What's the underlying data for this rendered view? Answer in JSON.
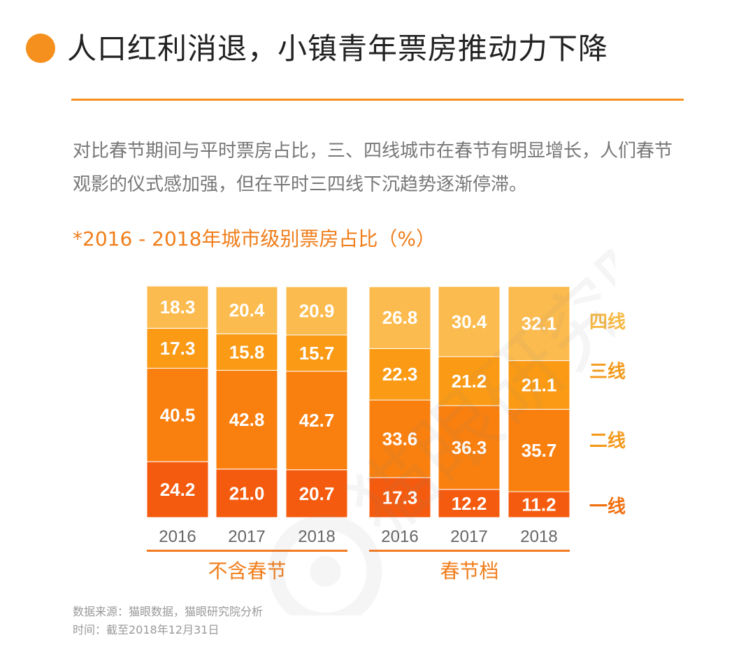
{
  "header": {
    "title": "人口红利消退，小镇青年票房推动力下降"
  },
  "description": "对比春节期间与平时票房占比，三、四线城市在春节有明显增长，人们春节观影的仪式感加强，但在平时三四线下沉趋势逐渐停滞。",
  "chart_data": {
    "type": "bar",
    "stacked": true,
    "percent_stacked": true,
    "title": "*2016 - 2018年城市级别票房占比（%）",
    "groups": [
      {
        "label": "不含春节",
        "categories": [
          "2016",
          "2017",
          "2018"
        ],
        "series": [
          {
            "name": "一线",
            "values": [
              24.2,
              21.0,
              20.7
            ]
          },
          {
            "name": "二线",
            "values": [
              40.5,
              42.8,
              42.7
            ]
          },
          {
            "name": "三线",
            "values": [
              17.3,
              15.8,
              15.7
            ]
          },
          {
            "name": "四线",
            "values": [
              18.3,
              20.4,
              20.9
            ]
          }
        ]
      },
      {
        "label": "春节档",
        "categories": [
          "2016",
          "2017",
          "2018"
        ],
        "series": [
          {
            "name": "一线",
            "values": [
              17.3,
              12.2,
              11.2
            ]
          },
          {
            "name": "二线",
            "values": [
              33.6,
              36.3,
              35.7
            ]
          },
          {
            "name": "三线",
            "values": [
              22.3,
              21.2,
              21.1
            ]
          },
          {
            "name": "四线",
            "values": [
              26.8,
              30.4,
              32.1
            ]
          }
        ]
      }
    ],
    "value_labels": {
      "一线": [
        [
          "24.2",
          "21.0",
          "20.7"
        ],
        [
          "17.3",
          "12.2",
          "11.2"
        ]
      ],
      "二线": [
        [
          "40.5",
          "42.8",
          "42.7"
        ],
        [
          "33.6",
          "36.3",
          "35.7"
        ]
      ],
      "三线": [
        [
          "17.3",
          "15.8",
          "15.7"
        ],
        [
          "22.3",
          "21.2",
          "21.1"
        ]
      ],
      "四线": [
        [
          "18.3",
          "20.4",
          "20.9"
        ],
        [
          "26.8",
          "30.4",
          "32.1"
        ]
      ]
    },
    "legend": [
      "四线",
      "三线",
      "二线",
      "一线"
    ],
    "legend_position": "right",
    "colors": {
      "一线": "#f45b0e",
      "二线": "#f9800f",
      "三线": "#fb9a14",
      "四线": "#fcbb4e"
    },
    "label_colors": {
      "四线": "#f6b844",
      "三线": "#f39a1c",
      "二线": "#f39a1c",
      "一线": "#f07010"
    },
    "group_underline_color": "#f37a20",
    "year_label_color": "#666666",
    "group_label_color": "#f07d1a"
  },
  "source": {
    "line1": "数据来源：猫眼数据，猫眼研究院分析",
    "line2": "时间：截至2018年12月31日"
  },
  "watermark": {
    "text": "猫眼研究院",
    "icon": "cat-eye-logo-icon"
  }
}
